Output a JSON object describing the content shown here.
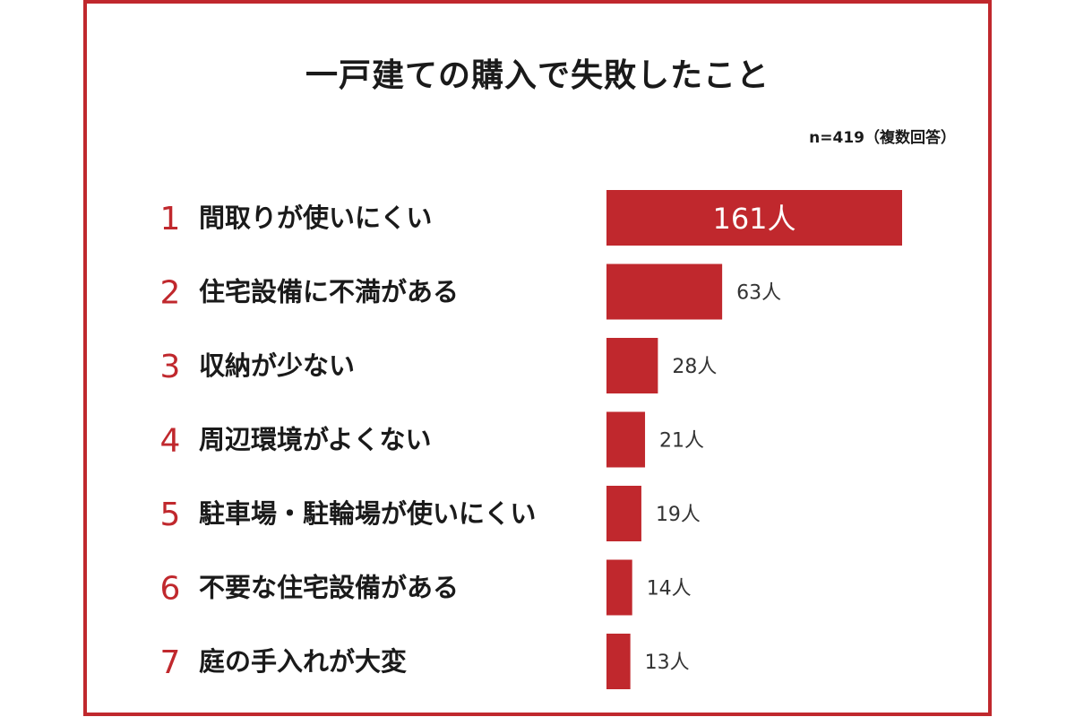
{
  "chart_data": {
    "type": "bar",
    "orientation": "horizontal",
    "title": "一戸建ての購入で失敗したこと",
    "note": "n=419（複数回答）",
    "unit": "人",
    "ranks": [
      "1",
      "2",
      "3",
      "4",
      "5",
      "6",
      "7"
    ],
    "categories": [
      "間取りが使いにくい",
      "住宅設備に不満がある",
      "収納が少ない",
      "周辺環境がよくない",
      "駐車場・駐輪場が使いにくい",
      "不要な住宅設備がある",
      "庭の手入れが大変"
    ],
    "values": [
      161,
      63,
      28,
      21,
      19,
      14,
      13
    ],
    "value_labels": [
      "161人",
      "63人",
      "28人",
      "21人",
      "19人",
      "14人",
      "13人"
    ],
    "xlim": [
      0,
      161
    ],
    "grid": false,
    "legend": "none",
    "bar_color": "#c0282d",
    "rank_color": "#c0282d",
    "label_color": "#1a1a1a"
  }
}
